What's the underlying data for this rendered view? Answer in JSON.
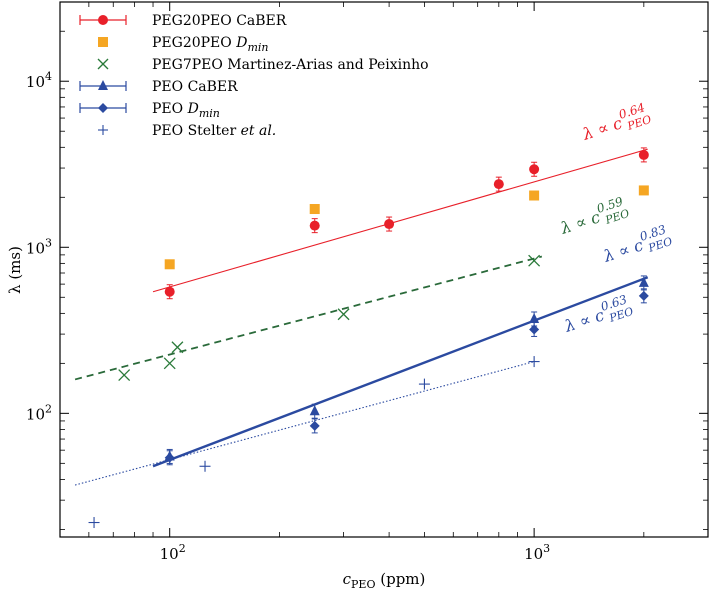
{
  "chart_data": {
    "type": "scatter",
    "xscale": "log",
    "yscale": "log",
    "xlim": [
      50,
      3000
    ],
    "ylim": [
      18,
      30000
    ],
    "xlabel": "c_PEO (ppm)",
    "ylabel": "λ (ms)",
    "x_ticks": [
      {
        "value": 100,
        "label": "10^2"
      },
      {
        "value": 1000,
        "label": "10^3"
      }
    ],
    "y_ticks": [
      {
        "value": 100,
        "label": "10^2"
      },
      {
        "value": 1000,
        "label": "10^3"
      },
      {
        "value": 10000,
        "label": "10^4"
      }
    ],
    "legend_position": "top-left",
    "series": [
      {
        "name": "PEG20PEO CaBER",
        "marker": "circle",
        "color": "#e8202a",
        "errorbars": true,
        "points": [
          [
            100,
            540
          ],
          [
            250,
            1350
          ],
          [
            400,
            1380
          ],
          [
            800,
            2400
          ],
          [
            1000,
            2950
          ],
          [
            2000,
            3600
          ]
        ]
      },
      {
        "name": "PEG20PEO D_min",
        "marker": "square",
        "color": "#f5a623",
        "points": [
          [
            100,
            790
          ],
          [
            250,
            1700
          ],
          [
            1000,
            2050
          ],
          [
            2000,
            2200
          ]
        ]
      },
      {
        "name": "PEG7PEO Martinez-Arias and Peixinho",
        "marker": "x",
        "color": "#2a7a3a",
        "points": [
          [
            75,
            170
          ],
          [
            100,
            200
          ],
          [
            105,
            250
          ],
          [
            300,
            395
          ],
          [
            1000,
            830
          ]
        ]
      },
      {
        "name": "PEO CaBER",
        "marker": "triangle",
        "color": "#2b4aa0",
        "errorbars": true,
        "points": [
          [
            100,
            55
          ],
          [
            250,
            103
          ],
          [
            1000,
            370
          ],
          [
            2000,
            610
          ]
        ]
      },
      {
        "name": "PEO D_min",
        "marker": "diamond",
        "color": "#2b4aa0",
        "errorbars": true,
        "points": [
          [
            100,
            54
          ],
          [
            250,
            84
          ],
          [
            1000,
            320
          ],
          [
            2000,
            510
          ]
        ]
      },
      {
        "name": "PEO Stelter et al.",
        "marker": "plus",
        "color": "#2b4aa0",
        "points": [
          [
            62,
            22
          ],
          [
            125,
            48
          ],
          [
            500,
            150
          ],
          [
            1000,
            205
          ]
        ]
      }
    ],
    "fits": [
      {
        "exponent": "0.64",
        "label": "λ ∝ c_PEO^0.64",
        "color": "#e8202a",
        "style": "solid",
        "x": [
          90,
          2050
        ],
        "y": [
          540,
          3900
        ]
      },
      {
        "exponent": "0.59",
        "label": "λ ∝ c_PEO^0.59",
        "color": "#2a6a3a",
        "style": "dashed",
        "x": [
          55,
          1050
        ],
        "y": [
          160,
          880
        ]
      },
      {
        "exponent": "0.83",
        "label": "λ ∝ c_PEO^0.83",
        "color": "#2b4aa0",
        "style": "solid-thick",
        "x": [
          90,
          2050
        ],
        "y": [
          48,
          660
        ]
      },
      {
        "exponent": "0.63",
        "label": "λ ∝ c_PEO^0.63",
        "color": "#2b4aa0",
        "style": "dotted",
        "x": [
          55,
          1000
        ],
        "y": [
          37,
          205
        ]
      }
    ]
  }
}
